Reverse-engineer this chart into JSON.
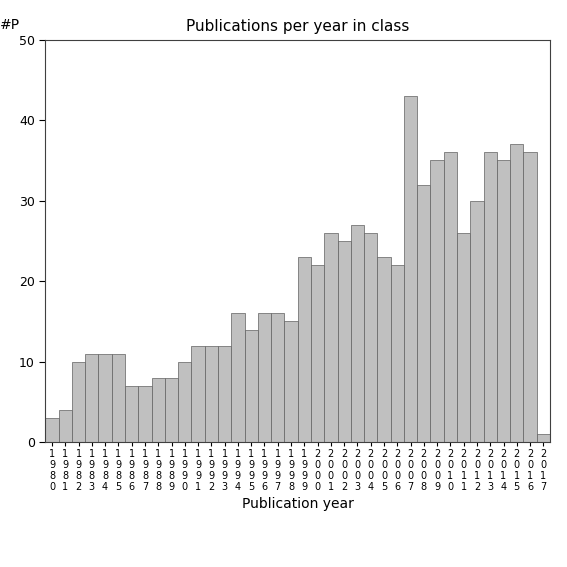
{
  "title": "Publications per year in class",
  "xlabel": "Publication year",
  "ylabel": "#P",
  "years": [
    "1980",
    "1981",
    "1982",
    "1983",
    "1984",
    "1985",
    "1986",
    "1987",
    "1988",
    "1989",
    "1990",
    "1991",
    "1992",
    "1993",
    "1994",
    "1995",
    "1996",
    "1997",
    "1998",
    "1999",
    "2000",
    "2001",
    "2002",
    "2003",
    "2004",
    "2005",
    "2006",
    "2007",
    "2008",
    "2009",
    "2010",
    "2011",
    "2012",
    "2013",
    "2014",
    "2015",
    "2016",
    "2017"
  ],
  "values": [
    3,
    4,
    10,
    11,
    11,
    11,
    7,
    7,
    8,
    8,
    10,
    12,
    12,
    12,
    16,
    14,
    16,
    16,
    15,
    23,
    22,
    26,
    25,
    27,
    26,
    23,
    22,
    43,
    32,
    35,
    36,
    26,
    30,
    36,
    35,
    37,
    36,
    1
  ],
  "bar_color": "#c0c0c0",
  "bar_edgecolor": "#606060",
  "ylim": [
    0,
    50
  ],
  "yticks": [
    0,
    10,
    20,
    30,
    40,
    50
  ],
  "background_color": "#ffffff",
  "figsize": [
    5.67,
    5.67
  ],
  "dpi": 100,
  "title_fontsize": 11,
  "axis_label_fontsize": 10,
  "tick_fontsize": 9,
  "xtick_fontsize": 7
}
